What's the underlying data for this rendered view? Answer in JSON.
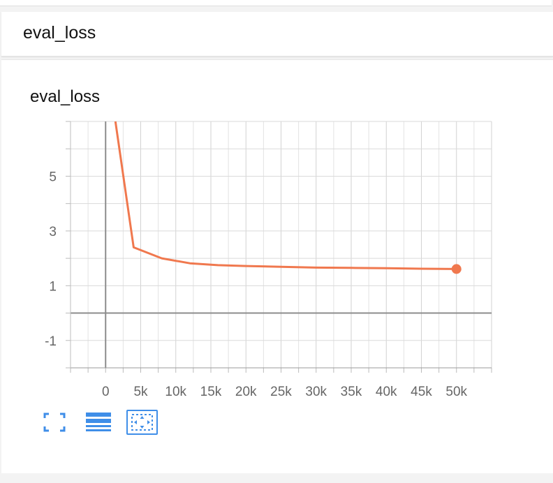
{
  "header": {
    "title": "eval_loss"
  },
  "toolbar": {
    "fullscreen_icon": "fullscreen-icon",
    "list_icon": "list-icon",
    "fit_icon": "fit-domain-icon",
    "accent": "#3f8ee8"
  },
  "chart_data": {
    "type": "line",
    "title": "eval_loss",
    "xlabel": "",
    "ylabel": "",
    "xlim": [
      -5000,
      55000
    ],
    "ylim": [
      -2,
      7
    ],
    "x_ticks": [
      0,
      5000,
      10000,
      15000,
      20000,
      25000,
      30000,
      35000,
      40000,
      45000,
      50000
    ],
    "x_tick_labels": [
      "0",
      "5k",
      "10k",
      "15k",
      "20k",
      "25k",
      "30k",
      "35k",
      "40k",
      "45k",
      "50k"
    ],
    "y_ticks": [
      -1,
      1,
      3,
      5
    ],
    "y_tick_labels": [
      "-1",
      "1",
      "3",
      "5"
    ],
    "grid": true,
    "series": [
      {
        "color": "#f0784e",
        "x": [
          1400,
          4000,
          8000,
          12000,
          16000,
          20000,
          25000,
          30000,
          35000,
          40000,
          45000,
          50000
        ],
        "y": [
          7.0,
          2.4,
          2.0,
          1.82,
          1.75,
          1.72,
          1.69,
          1.66,
          1.65,
          1.64,
          1.62,
          1.61
        ]
      }
    ]
  }
}
